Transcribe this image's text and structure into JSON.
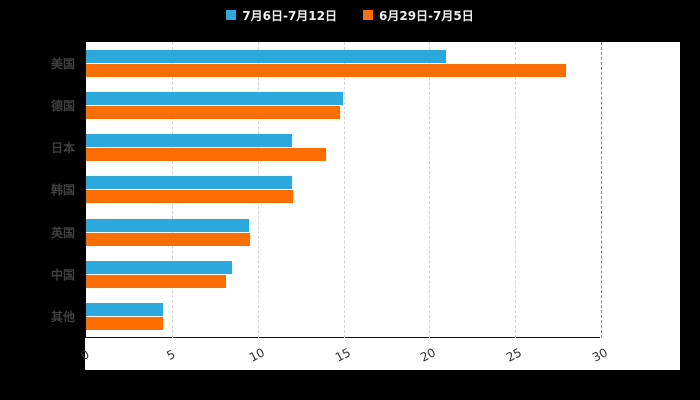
{
  "chart_data": {
    "type": "bar",
    "orientation": "horizontal",
    "categories": [
      "美国",
      "德国",
      "日本",
      "韩国",
      "英国",
      "中国",
      "其他"
    ],
    "series": [
      {
        "name": "7月6日-7月12日",
        "color": "#2da8dc",
        "values": [
          21,
          15,
          12,
          12,
          9.5,
          8.5,
          4.5
        ]
      },
      {
        "name": "6月29日-7月5日",
        "color": "#fa6e03",
        "values": [
          28,
          14.8,
          14,
          12.1,
          9.6,
          8.2,
          4.5
        ]
      }
    ],
    "x_ticks": [
      0,
      5,
      10,
      15,
      20,
      25,
      30
    ],
    "xlim": [
      0,
      30
    ],
    "title": "",
    "xlabel": "",
    "ylabel": "",
    "grid": "vertical-dashed",
    "legend_position": "top-center",
    "colors": {
      "background": "#000000",
      "plot_background": "#ffffff",
      "series1": "#2da8dc",
      "series2": "#fa6e03"
    }
  }
}
